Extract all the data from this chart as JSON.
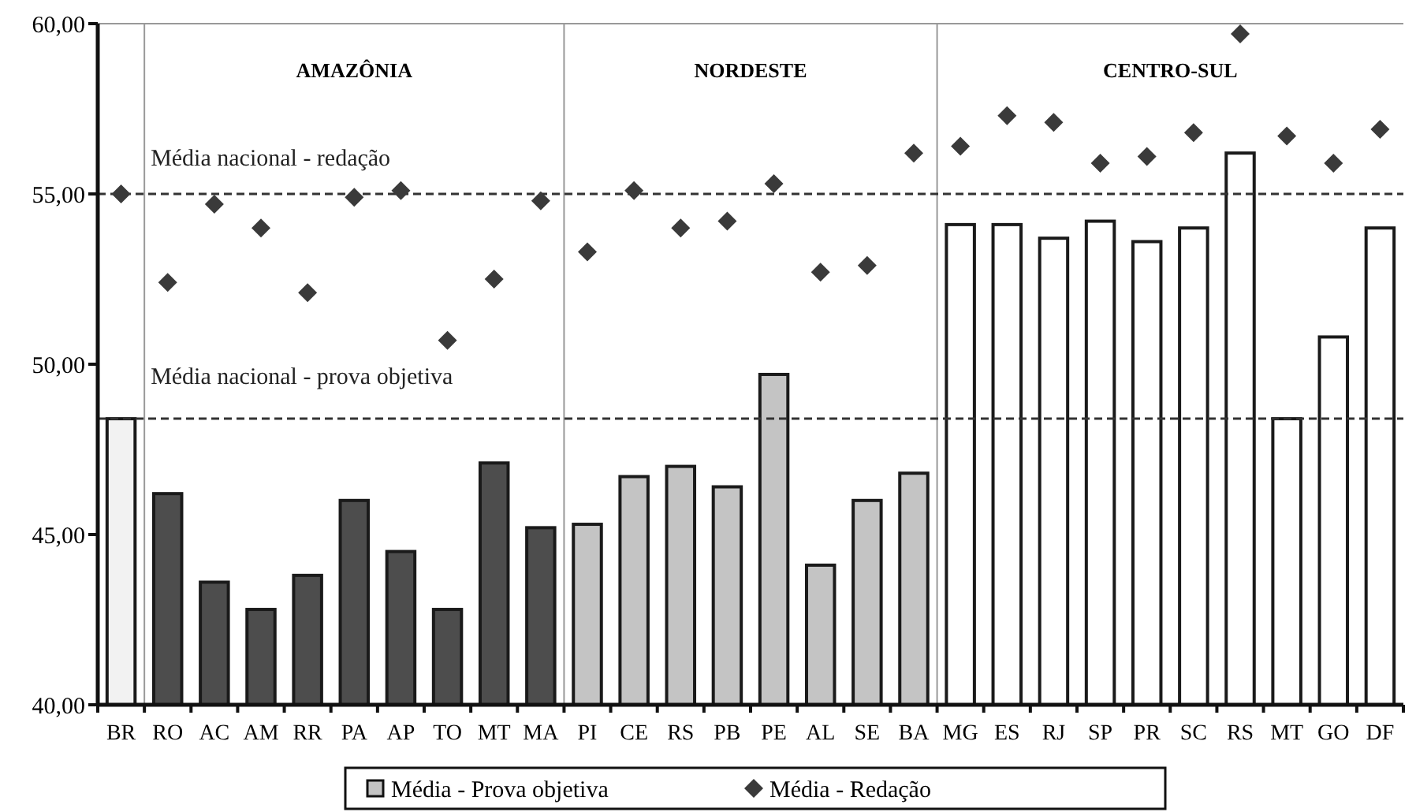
{
  "chart_data": {
    "type": "bar",
    "categories": [
      "BR",
      "RO",
      "AC",
      "AM",
      "RR",
      "PA",
      "AP",
      "TO",
      "MT",
      "MA",
      "PI",
      "CE",
      "RS",
      "PB",
      "PE",
      "AL",
      "SE",
      "BA",
      "MG",
      "ES",
      "RJ",
      "SP",
      "PR",
      "SC",
      "RS",
      "MT",
      "GO",
      "DF"
    ],
    "series": [
      {
        "name": "Média - Prova objetiva",
        "colors": [
          "#f2f2f2",
          "#4d4d4d",
          "#4d4d4d",
          "#4d4d4d",
          "#4d4d4d",
          "#4d4d4d",
          "#4d4d4d",
          "#4d4d4d",
          "#4d4d4d",
          "#4d4d4d",
          "#c4c4c4",
          "#c4c4c4",
          "#c4c4c4",
          "#c4c4c4",
          "#c4c4c4",
          "#c4c4c4",
          "#c4c4c4",
          "#c4c4c4",
          "#ffffff",
          "#ffffff",
          "#ffffff",
          "#ffffff",
          "#ffffff",
          "#ffffff",
          "#ffffff",
          "#ffffff",
          "#ffffff",
          "#ffffff"
        ],
        "values": [
          48.4,
          46.2,
          43.6,
          42.8,
          43.8,
          46.0,
          44.5,
          42.8,
          47.1,
          45.2,
          45.3,
          46.7,
          47.0,
          46.4,
          49.7,
          44.1,
          46.0,
          46.8,
          54.1,
          54.1,
          53.7,
          54.2,
          53.6,
          54.0,
          56.2,
          48.4,
          50.8,
          54.0
        ]
      },
      {
        "name": "Média - Redação",
        "type": "scatter",
        "color": "#3a3a3a",
        "marker": "diamond",
        "values": [
          55.0,
          52.4,
          54.7,
          54.0,
          52.1,
          54.9,
          55.1,
          50.7,
          52.5,
          54.8,
          53.3,
          55.1,
          54.0,
          54.2,
          55.3,
          52.7,
          52.9,
          56.2,
          56.4,
          57.3,
          57.1,
          55.9,
          56.1,
          56.8,
          59.7,
          56.7,
          55.9,
          56.9
        ]
      }
    ],
    "ylim": [
      40,
      60
    ],
    "yticks": [
      {
        "value": 40,
        "label": "40,00"
      },
      {
        "value": 45,
        "label": "45,00"
      },
      {
        "value": 50,
        "label": "50,00"
      },
      {
        "value": 55,
        "label": "55,00"
      },
      {
        "value": 60,
        "label": "60,00"
      }
    ],
    "ref_lines": [
      {
        "axis": "y",
        "value": 55,
        "label": "Média nacional - redação",
        "line_style": "dashed",
        "color": "#333333"
      },
      {
        "axis": "y",
        "value": 48.4,
        "label": "Média nacional - prova objetiva",
        "line_style": "dashed",
        "color": "#333333"
      }
    ],
    "annotations": [
      "AMAZÔNIA",
      "NORDESTE",
      "CENTRO-SUL"
    ],
    "grid": false,
    "legend": "bottom"
  }
}
